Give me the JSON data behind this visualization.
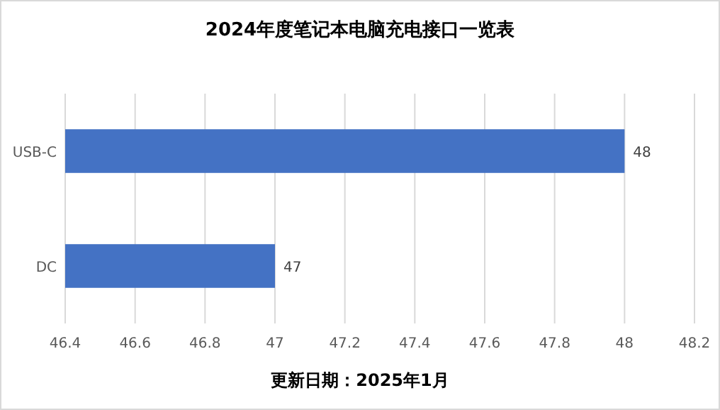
{
  "chart_data": {
    "type": "bar",
    "orientation": "horizontal",
    "title": "2024年度笔记本电脑充电接口一览表",
    "categories": [
      "USB-C",
      "DC"
    ],
    "values": [
      48,
      47
    ],
    "color": "#4472c4",
    "xlim": [
      46.4,
      48.2
    ],
    "xticks": [
      46.4,
      46.6,
      46.8,
      47,
      47.2,
      47.4,
      47.6,
      47.8,
      48,
      48.2
    ],
    "grid": "x",
    "data_labels": true,
    "annotations": [
      "更新日期：2025年1月"
    ]
  }
}
